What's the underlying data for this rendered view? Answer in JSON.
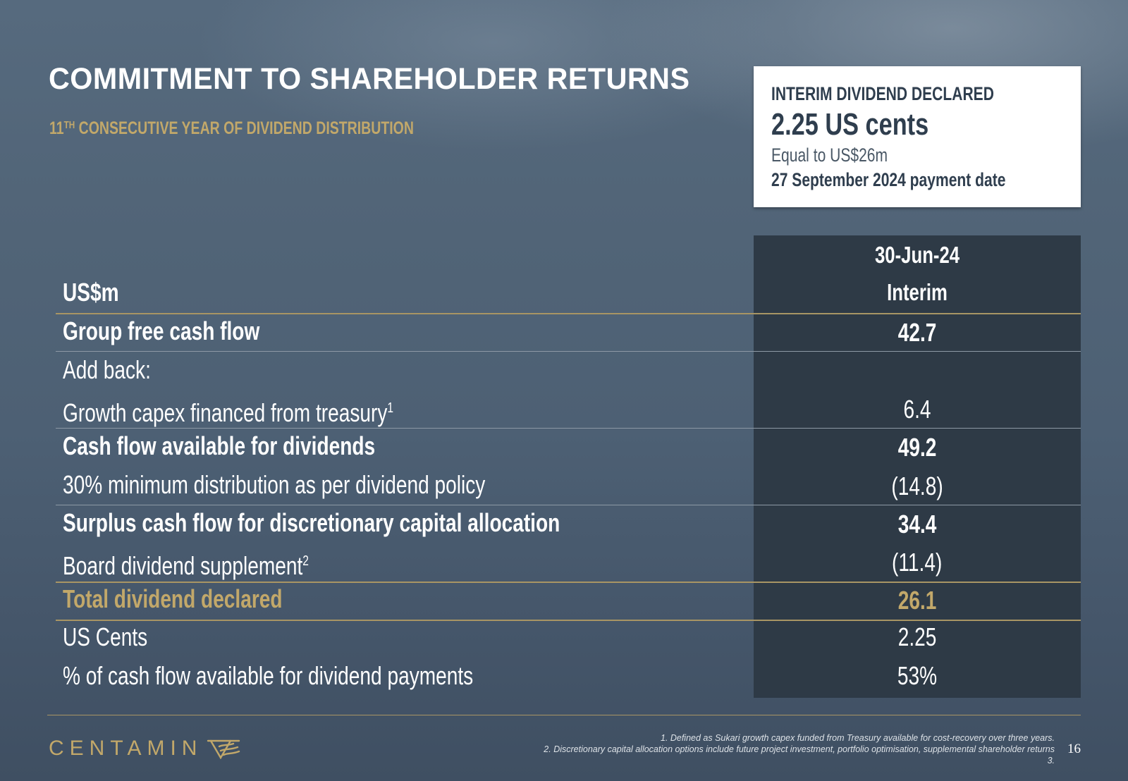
{
  "title": "COMMITMENT TO SHAREHOLDER RETURNS",
  "subtitle": {
    "prefix": "11",
    "sup": "TH",
    "text": " CONSECUTIVE YEAR OF DIVIDEND DISTRIBUTION"
  },
  "callout": {
    "heading": "INTERIM DIVIDEND DECLARED",
    "value": "2.25 US cents",
    "equal": "Equal to US$26m",
    "date": "27 September 2024 payment date"
  },
  "table": {
    "units_label": "US$m",
    "col_date": "30-Jun-24",
    "col_type": "Interim",
    "rows": [
      {
        "label": "Group free cash flow",
        "sup": "",
        "value": "42.7"
      },
      {
        "label": "Add back:",
        "sup": "",
        "value": ""
      },
      {
        "label": "Growth capex financed from treasury",
        "sup": "1",
        "value": "6.4"
      },
      {
        "label": "Cash flow available for dividends",
        "sup": "",
        "value": "49.2"
      },
      {
        "label": "30% minimum distribution as per dividend policy",
        "sup": "",
        "value": "(14.8)"
      },
      {
        "label": "Surplus cash flow for discretionary capital allocation",
        "sup": "",
        "value": "34.4"
      },
      {
        "label": "Board dividend supplement",
        "sup": "2",
        "value": "(11.4)"
      },
      {
        "label": "Total dividend declared",
        "sup": "",
        "value": "26.1"
      },
      {
        "label": "US Cents",
        "sup": "",
        "value": "2.25"
      },
      {
        "label": "% of cash flow available for dividend payments",
        "sup": "",
        "value": "53%"
      }
    ]
  },
  "logo_text": "CENTAMIN",
  "footnotes": [
    "1. Defined as Sukari growth capex funded from Treasury available for cost-recovery over three years.",
    "2. Discretionary capital allocation options include future project investment, portfolio optimisation, supplemental shareholder returns",
    "3."
  ],
  "page_number": "16",
  "colors": {
    "gold": "#c2a86a",
    "panel": "#2e3a46",
    "text_dark": "#2f3e4e"
  }
}
